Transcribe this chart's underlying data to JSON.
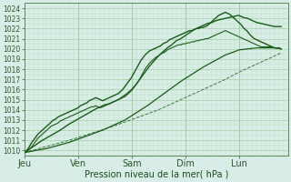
{
  "xlabel": "Pression niveau de la mer( hPa )",
  "background_color": "#d8ede8",
  "grid_major_color": "#a8cca8",
  "grid_minor_color": "#bcdcbc",
  "ylim": [
    1009.5,
    1024.5
  ],
  "yticks": [
    1010,
    1011,
    1012,
    1013,
    1014,
    1015,
    1016,
    1017,
    1018,
    1019,
    1020,
    1021,
    1022,
    1023,
    1024
  ],
  "xtick_labels": [
    "Jeu",
    "Ven",
    "Sam",
    "Dim",
    "Lun"
  ],
  "xtick_positions": [
    0,
    24,
    48,
    72,
    96
  ],
  "xlim": [
    0,
    118
  ],
  "dark_green": "#1a5c1a",
  "dashed_green": "#3a7a3a",
  "line_main_jagged": [
    [
      0,
      1009.8
    ],
    [
      1,
      1010.0
    ],
    [
      2,
      1010.3
    ],
    [
      3,
      1010.7
    ],
    [
      4,
      1011.0
    ],
    [
      5,
      1011.3
    ],
    [
      6,
      1011.6
    ],
    [
      7,
      1011.8
    ],
    [
      8,
      1012.0
    ],
    [
      9,
      1012.2
    ],
    [
      10,
      1012.4
    ],
    [
      11,
      1012.6
    ],
    [
      12,
      1012.8
    ],
    [
      13,
      1013.0
    ],
    [
      14,
      1013.1
    ],
    [
      15,
      1013.3
    ],
    [
      16,
      1013.4
    ],
    [
      17,
      1013.5
    ],
    [
      18,
      1013.6
    ],
    [
      19,
      1013.7
    ],
    [
      20,
      1013.8
    ],
    [
      21,
      1013.9
    ],
    [
      22,
      1014.0
    ],
    [
      23,
      1014.1
    ],
    [
      24,
      1014.2
    ],
    [
      25,
      1014.4
    ],
    [
      26,
      1014.5
    ],
    [
      27,
      1014.6
    ],
    [
      28,
      1014.7
    ],
    [
      29,
      1014.9
    ],
    [
      30,
      1015.0
    ],
    [
      31,
      1015.1
    ],
    [
      32,
      1015.2
    ],
    [
      33,
      1015.1
    ],
    [
      34,
      1015.0
    ],
    [
      35,
      1014.9
    ],
    [
      36,
      1015.0
    ],
    [
      37,
      1015.1
    ],
    [
      38,
      1015.2
    ],
    [
      39,
      1015.3
    ],
    [
      40,
      1015.4
    ],
    [
      41,
      1015.5
    ],
    [
      42,
      1015.6
    ],
    [
      43,
      1015.8
    ],
    [
      44,
      1016.0
    ],
    [
      45,
      1016.3
    ],
    [
      46,
      1016.6
    ],
    [
      47,
      1016.9
    ],
    [
      48,
      1017.2
    ],
    [
      49,
      1017.6
    ],
    [
      50,
      1018.0
    ],
    [
      51,
      1018.4
    ],
    [
      52,
      1018.8
    ],
    [
      53,
      1019.1
    ],
    [
      54,
      1019.4
    ],
    [
      55,
      1019.6
    ],
    [
      56,
      1019.8
    ],
    [
      57,
      1019.9
    ],
    [
      58,
      1020.0
    ],
    [
      59,
      1020.1
    ],
    [
      60,
      1020.2
    ],
    [
      61,
      1020.3
    ],
    [
      62,
      1020.5
    ],
    [
      63,
      1020.6
    ],
    [
      64,
      1020.7
    ],
    [
      65,
      1020.9
    ],
    [
      66,
      1021.0
    ],
    [
      67,
      1021.1
    ],
    [
      68,
      1021.2
    ],
    [
      69,
      1021.3
    ],
    [
      70,
      1021.4
    ],
    [
      71,
      1021.5
    ],
    [
      72,
      1021.6
    ],
    [
      73,
      1021.7
    ],
    [
      74,
      1021.8
    ],
    [
      75,
      1021.8
    ],
    [
      76,
      1021.9
    ],
    [
      77,
      1022.0
    ],
    [
      78,
      1022.0
    ],
    [
      79,
      1022.1
    ],
    [
      80,
      1022.1
    ],
    [
      81,
      1022.2
    ],
    [
      82,
      1022.3
    ],
    [
      83,
      1022.5
    ],
    [
      84,
      1022.7
    ],
    [
      85,
      1022.9
    ],
    [
      86,
      1023.1
    ],
    [
      87,
      1023.3
    ],
    [
      88,
      1023.4
    ],
    [
      89,
      1023.5
    ],
    [
      90,
      1023.6
    ],
    [
      91,
      1023.5
    ],
    [
      92,
      1023.4
    ],
    [
      93,
      1023.2
    ],
    [
      94,
      1023.0
    ],
    [
      95,
      1022.8
    ],
    [
      96,
      1022.6
    ],
    [
      97,
      1022.4
    ],
    [
      98,
      1022.1
    ],
    [
      99,
      1021.9
    ],
    [
      100,
      1021.7
    ],
    [
      101,
      1021.4
    ],
    [
      102,
      1021.2
    ],
    [
      103,
      1021.0
    ],
    [
      104,
      1020.9
    ],
    [
      105,
      1020.8
    ],
    [
      106,
      1020.7
    ],
    [
      107,
      1020.6
    ],
    [
      108,
      1020.5
    ],
    [
      109,
      1020.4
    ],
    [
      110,
      1020.3
    ],
    [
      111,
      1020.2
    ],
    [
      112,
      1020.1
    ],
    [
      113,
      1020.1
    ],
    [
      114,
      1020.1
    ],
    [
      115,
      1020.0
    ]
  ],
  "line_upper_jagged": [
    [
      0,
      1009.8
    ],
    [
      4,
      1010.4
    ],
    [
      8,
      1011.0
    ],
    [
      12,
      1011.5
    ],
    [
      16,
      1012.0
    ],
    [
      20,
      1012.6
    ],
    [
      24,
      1013.1
    ],
    [
      28,
      1013.6
    ],
    [
      32,
      1014.1
    ],
    [
      36,
      1014.5
    ],
    [
      38,
      1014.6
    ],
    [
      40,
      1014.8
    ],
    [
      42,
      1015.0
    ],
    [
      44,
      1015.3
    ],
    [
      46,
      1015.6
    ],
    [
      48,
      1016.0
    ],
    [
      50,
      1016.5
    ],
    [
      52,
      1017.1
    ],
    [
      54,
      1017.7
    ],
    [
      56,
      1018.3
    ],
    [
      58,
      1018.8
    ],
    [
      60,
      1019.3
    ],
    [
      62,
      1019.7
    ],
    [
      64,
      1020.1
    ],
    [
      66,
      1020.4
    ],
    [
      68,
      1020.8
    ],
    [
      70,
      1021.0
    ],
    [
      72,
      1021.3
    ],
    [
      74,
      1021.6
    ],
    [
      76,
      1021.9
    ],
    [
      78,
      1022.1
    ],
    [
      80,
      1022.3
    ],
    [
      82,
      1022.5
    ],
    [
      84,
      1022.6
    ],
    [
      86,
      1022.8
    ],
    [
      88,
      1022.9
    ],
    [
      90,
      1023.0
    ],
    [
      92,
      1023.1
    ],
    [
      94,
      1023.2
    ],
    [
      96,
      1023.3
    ],
    [
      97,
      1023.2
    ],
    [
      98,
      1023.1
    ],
    [
      100,
      1023.0
    ],
    [
      102,
      1022.8
    ],
    [
      104,
      1022.6
    ],
    [
      106,
      1022.5
    ],
    [
      108,
      1022.4
    ],
    [
      110,
      1022.3
    ],
    [
      112,
      1022.2
    ],
    [
      114,
      1022.2
    ],
    [
      115,
      1022.2
    ]
  ],
  "line_noisy1": [
    [
      0,
      1009.8
    ],
    [
      1,
      1009.9
    ],
    [
      2,
      1010.1
    ],
    [
      3,
      1010.3
    ],
    [
      4,
      1010.6
    ],
    [
      5,
      1010.9
    ],
    [
      6,
      1011.2
    ],
    [
      7,
      1011.4
    ],
    [
      8,
      1011.6
    ],
    [
      9,
      1011.8
    ],
    [
      10,
      1012.0
    ],
    [
      11,
      1012.2
    ],
    [
      12,
      1012.4
    ],
    [
      13,
      1012.5
    ],
    [
      14,
      1012.6
    ],
    [
      15,
      1012.7
    ],
    [
      16,
      1012.9
    ],
    [
      17,
      1013.0
    ],
    [
      18,
      1013.1
    ],
    [
      19,
      1013.2
    ],
    [
      20,
      1013.3
    ],
    [
      21,
      1013.4
    ],
    [
      22,
      1013.5
    ],
    [
      23,
      1013.6
    ],
    [
      24,
      1013.7
    ],
    [
      25,
      1013.8
    ],
    [
      26,
      1013.9
    ],
    [
      27,
      1014.0
    ],
    [
      28,
      1014.1
    ],
    [
      29,
      1014.2
    ],
    [
      30,
      1014.3
    ],
    [
      31,
      1014.3
    ],
    [
      32,
      1014.4
    ],
    [
      33,
      1014.3
    ],
    [
      34,
      1014.2
    ],
    [
      35,
      1014.3
    ],
    [
      36,
      1014.4
    ],
    [
      37,
      1014.5
    ],
    [
      38,
      1014.6
    ],
    [
      39,
      1014.7
    ],
    [
      40,
      1014.8
    ],
    [
      41,
      1014.9
    ],
    [
      42,
      1015.0
    ],
    [
      43,
      1015.1
    ],
    [
      44,
      1015.2
    ],
    [
      45,
      1015.3
    ],
    [
      46,
      1015.5
    ],
    [
      47,
      1015.7
    ],
    [
      48,
      1015.9
    ],
    [
      49,
      1016.2
    ],
    [
      50,
      1016.5
    ],
    [
      51,
      1016.8
    ],
    [
      52,
      1017.2
    ],
    [
      53,
      1017.6
    ],
    [
      54,
      1018.0
    ],
    [
      55,
      1018.3
    ],
    [
      56,
      1018.6
    ],
    [
      57,
      1018.8
    ],
    [
      58,
      1019.0
    ],
    [
      59,
      1019.2
    ],
    [
      60,
      1019.3
    ],
    [
      61,
      1019.5
    ],
    [
      62,
      1019.6
    ],
    [
      63,
      1019.7
    ],
    [
      64,
      1019.9
    ],
    [
      65,
      1020.0
    ],
    [
      66,
      1020.1
    ],
    [
      67,
      1020.2
    ],
    [
      68,
      1020.3
    ],
    [
      69,
      1020.4
    ],
    [
      70,
      1020.4
    ],
    [
      71,
      1020.5
    ],
    [
      72,
      1020.5
    ],
    [
      73,
      1020.6
    ],
    [
      74,
      1020.6
    ],
    [
      75,
      1020.7
    ],
    [
      76,
      1020.7
    ],
    [
      77,
      1020.8
    ],
    [
      78,
      1020.8
    ],
    [
      79,
      1020.9
    ],
    [
      80,
      1020.9
    ],
    [
      81,
      1021.0
    ],
    [
      82,
      1021.0
    ],
    [
      83,
      1021.1
    ],
    [
      84,
      1021.2
    ],
    [
      85,
      1021.3
    ],
    [
      86,
      1021.4
    ],
    [
      87,
      1021.5
    ],
    [
      88,
      1021.6
    ],
    [
      89,
      1021.7
    ],
    [
      90,
      1021.8
    ],
    [
      91,
      1021.7
    ],
    [
      92,
      1021.6
    ],
    [
      93,
      1021.5
    ],
    [
      94,
      1021.4
    ],
    [
      95,
      1021.3
    ],
    [
      96,
      1021.2
    ],
    [
      97,
      1021.1
    ],
    [
      98,
      1021.0
    ],
    [
      99,
      1020.9
    ],
    [
      100,
      1020.8
    ],
    [
      101,
      1020.7
    ],
    [
      102,
      1020.6
    ],
    [
      103,
      1020.5
    ],
    [
      104,
      1020.4
    ],
    [
      105,
      1020.3
    ],
    [
      106,
      1020.2
    ],
    [
      107,
      1020.2
    ],
    [
      108,
      1020.2
    ],
    [
      109,
      1020.2
    ],
    [
      110,
      1020.2
    ],
    [
      111,
      1020.2
    ],
    [
      112,
      1020.1
    ],
    [
      113,
      1020.1
    ],
    [
      114,
      1020.1
    ],
    [
      115,
      1020.0
    ]
  ],
  "line_dashed": [
    [
      0,
      1009.8
    ],
    [
      10,
      1010.4
    ],
    [
      20,
      1011.0
    ],
    [
      30,
      1011.7
    ],
    [
      40,
      1012.4
    ],
    [
      50,
      1013.2
    ],
    [
      60,
      1014.0
    ],
    [
      70,
      1015.0
    ],
    [
      80,
      1016.0
    ],
    [
      90,
      1017.0
    ],
    [
      96,
      1017.7
    ],
    [
      100,
      1018.1
    ],
    [
      104,
      1018.5
    ],
    [
      108,
      1018.9
    ],
    [
      112,
      1019.3
    ],
    [
      115,
      1019.6
    ]
  ],
  "line_smooth_low": [
    [
      0,
      1009.8
    ],
    [
      5,
      1010.0
    ],
    [
      10,
      1010.2
    ],
    [
      15,
      1010.5
    ],
    [
      20,
      1010.8
    ],
    [
      25,
      1011.2
    ],
    [
      30,
      1011.6
    ],
    [
      35,
      1012.0
    ],
    [
      40,
      1012.5
    ],
    [
      45,
      1013.0
    ],
    [
      50,
      1013.7
    ],
    [
      55,
      1014.4
    ],
    [
      60,
      1015.2
    ],
    [
      65,
      1016.0
    ],
    [
      70,
      1016.8
    ],
    [
      75,
      1017.5
    ],
    [
      80,
      1018.2
    ],
    [
      85,
      1018.8
    ],
    [
      90,
      1019.4
    ],
    [
      95,
      1019.8
    ],
    [
      96,
      1019.9
    ],
    [
      100,
      1020.0
    ],
    [
      104,
      1020.1
    ],
    [
      108,
      1020.1
    ],
    [
      112,
      1020.1
    ],
    [
      115,
      1020.0
    ]
  ]
}
